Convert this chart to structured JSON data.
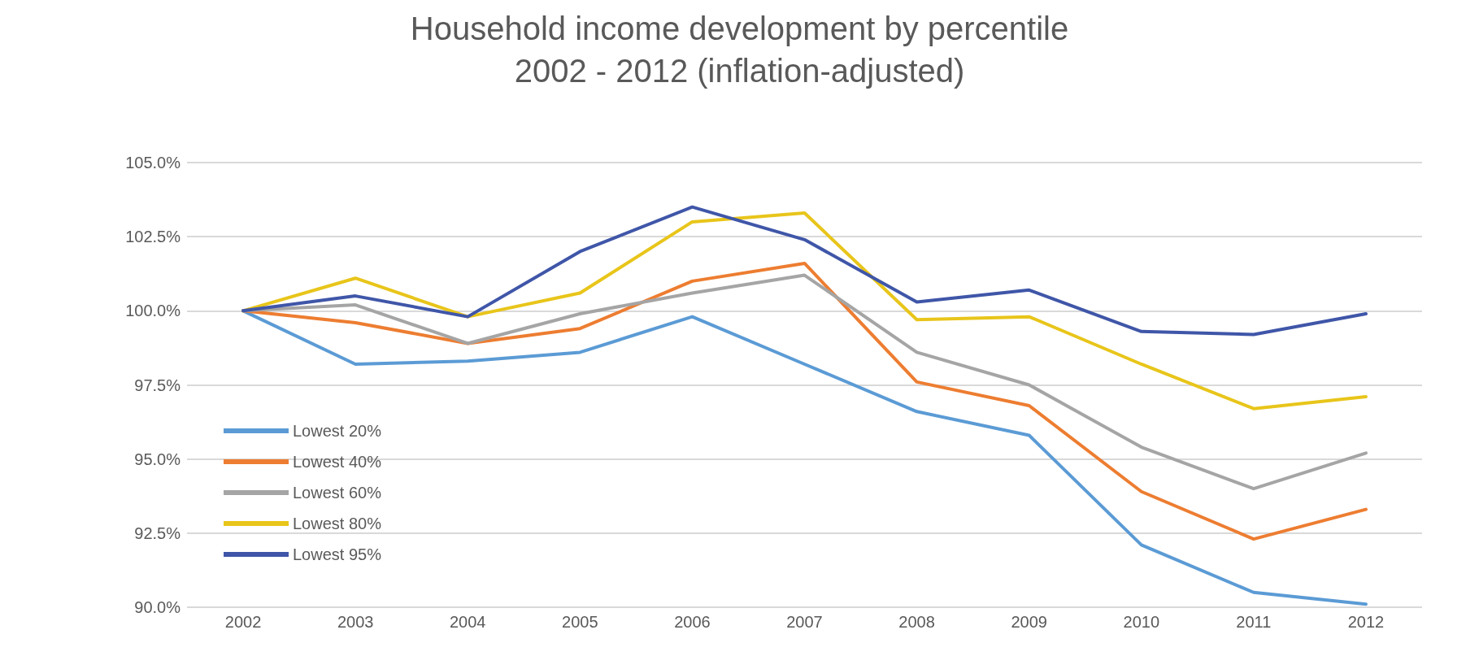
{
  "chart_data": {
    "type": "line",
    "title": "Household income development by percentile",
    "subtitle": "2002 - 2012 (inflation-adjusted)",
    "categories": [
      "2002",
      "2003",
      "2004",
      "2005",
      "2006",
      "2007",
      "2008",
      "2009",
      "2010",
      "2011",
      "2012"
    ],
    "series": [
      {
        "name": "Lowest 20%",
        "color": "#5b9bd5",
        "values": [
          100,
          98.2,
          98.3,
          98.6,
          99.8,
          98.2,
          96.6,
          95.8,
          92.1,
          90.5,
          90.1
        ]
      },
      {
        "name": "Lowest 40%",
        "color": "#ed7d31",
        "values": [
          100,
          99.6,
          98.9,
          99.4,
          101.0,
          101.6,
          97.6,
          96.8,
          93.9,
          92.3,
          93.3
        ]
      },
      {
        "name": "Lowest 60%",
        "color": "#a5a5a5",
        "values": [
          100,
          100.2,
          98.9,
          99.9,
          100.6,
          101.2,
          98.6,
          97.5,
          95.4,
          94.0,
          95.2
        ]
      },
      {
        "name": "Lowest 80%",
        "color": "#e8c51a",
        "values": [
          100,
          101.1,
          99.8,
          100.6,
          103.0,
          103.3,
          99.7,
          99.8,
          98.2,
          96.7,
          97.1
        ]
      },
      {
        "name": "Lowest 95%",
        "color": "#3f56a8",
        "values": [
          100,
          100.5,
          99.8,
          102.0,
          103.5,
          102.4,
          100.3,
          100.7,
          99.3,
          99.2,
          99.9
        ]
      }
    ],
    "ylim": [
      90,
      105
    ],
    "yticks": [
      {
        "value": 90,
        "label": "90.0%"
      },
      {
        "value": 92.5,
        "label": "92.5%"
      },
      {
        "value": 95,
        "label": "95.0%"
      },
      {
        "value": 97.5,
        "label": "97.5%"
      },
      {
        "value": 100,
        "label": "100.0%"
      },
      {
        "value": 102.5,
        "label": "102.5%"
      },
      {
        "value": 105,
        "label": "105.0%"
      }
    ],
    "grid": "y",
    "legend": "bottom left",
    "marker": "none",
    "line_style": "solid"
  }
}
